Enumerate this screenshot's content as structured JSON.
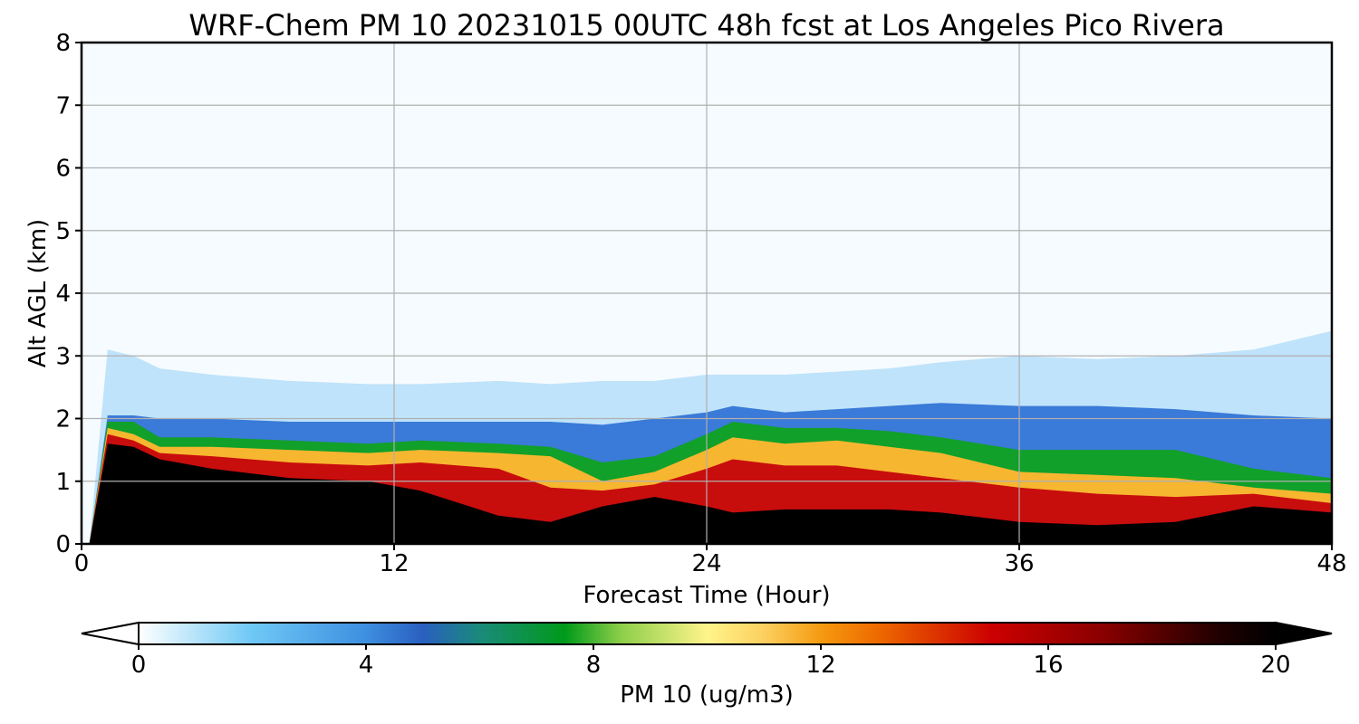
{
  "chart_data": {
    "type": "heatmap",
    "title": "WRF-Chem PM 10  20231015 00UTC 48h fcst at Los Angeles Pico Rivera",
    "xlabel": "Forecast Time (Hour)",
    "ylabel": "Alt AGL (km)",
    "xlim": [
      0,
      48
    ],
    "ylim": [
      0,
      8
    ],
    "xticks": [
      "0",
      "12",
      "24",
      "36",
      "48"
    ],
    "yticks": [
      "0",
      "1",
      "2",
      "3",
      "4",
      "5",
      "6",
      "7",
      "8"
    ],
    "grid": true,
    "colorbar": {
      "label": "PM 10  (ug/m3)",
      "range": [
        0,
        20
      ],
      "ticks": [
        "0",
        "4",
        "8",
        "12",
        "16",
        "20"
      ],
      "extend": "both",
      "stops": [
        {
          "v": 0,
          "c": "#ffffff"
        },
        {
          "v": 2,
          "c": "#6ec8f5"
        },
        {
          "v": 4,
          "c": "#3d8fe0"
        },
        {
          "v": 5,
          "c": "#2a5fc0"
        },
        {
          "v": 6,
          "c": "#1a8a7a"
        },
        {
          "v": 7.5,
          "c": "#009a1a"
        },
        {
          "v": 8.5,
          "c": "#8fcf4a"
        },
        {
          "v": 10,
          "c": "#fff48a"
        },
        {
          "v": 11,
          "c": "#fcd060"
        },
        {
          "v": 12,
          "c": "#f59a10"
        },
        {
          "v": 13,
          "c": "#ee6a00"
        },
        {
          "v": 15,
          "c": "#cc0000"
        },
        {
          "v": 17,
          "c": "#880000"
        },
        {
          "v": 19,
          "c": "#200000"
        },
        {
          "v": 20,
          "c": "#000000"
        }
      ]
    },
    "profile": {
      "hours": [
        0.3,
        1,
        2,
        3,
        5,
        8,
        11,
        13,
        16,
        18,
        20,
        22,
        24,
        25,
        27,
        29,
        31,
        33,
        36,
        39,
        42,
        45,
        48
      ],
      "black_top": [
        0.0,
        1.6,
        1.55,
        1.35,
        1.2,
        1.05,
        1.0,
        0.85,
        0.45,
        0.35,
        0.6,
        0.75,
        0.6,
        0.5,
        0.55,
        0.55,
        0.55,
        0.5,
        0.35,
        0.3,
        0.35,
        0.6,
        0.5
      ],
      "red_top": [
        0.0,
        1.75,
        1.65,
        1.45,
        1.4,
        1.3,
        1.25,
        1.3,
        1.2,
        0.9,
        0.85,
        0.95,
        1.2,
        1.35,
        1.25,
        1.25,
        1.15,
        1.05,
        0.9,
        0.8,
        0.75,
        0.8,
        0.65
      ],
      "yellow_top": [
        0.0,
        1.85,
        1.75,
        1.55,
        1.55,
        1.5,
        1.45,
        1.5,
        1.45,
        1.4,
        1.0,
        1.15,
        1.5,
        1.7,
        1.6,
        1.65,
        1.55,
        1.45,
        1.15,
        1.1,
        1.05,
        0.9,
        0.8
      ],
      "green_top": [
        0.0,
        1.95,
        1.95,
        1.7,
        1.7,
        1.65,
        1.6,
        1.65,
        1.6,
        1.55,
        1.3,
        1.4,
        1.75,
        1.95,
        1.85,
        1.85,
        1.8,
        1.7,
        1.5,
        1.5,
        1.5,
        1.2,
        1.05
      ],
      "blue_top": [
        0.0,
        2.05,
        2.05,
        2.0,
        2.0,
        1.95,
        1.95,
        1.95,
        1.95,
        1.95,
        1.9,
        2.0,
        2.1,
        2.2,
        2.1,
        2.15,
        2.2,
        2.25,
        2.2,
        2.2,
        2.15,
        2.05,
        2.0
      ],
      "lblue_top": [
        0.0,
        3.1,
        3.0,
        2.8,
        2.7,
        2.6,
        2.55,
        2.55,
        2.6,
        2.55,
        2.6,
        2.6,
        2.7,
        2.7,
        2.7,
        2.75,
        2.8,
        2.9,
        3.0,
        2.95,
        3.0,
        3.1,
        3.4
      ]
    }
  }
}
